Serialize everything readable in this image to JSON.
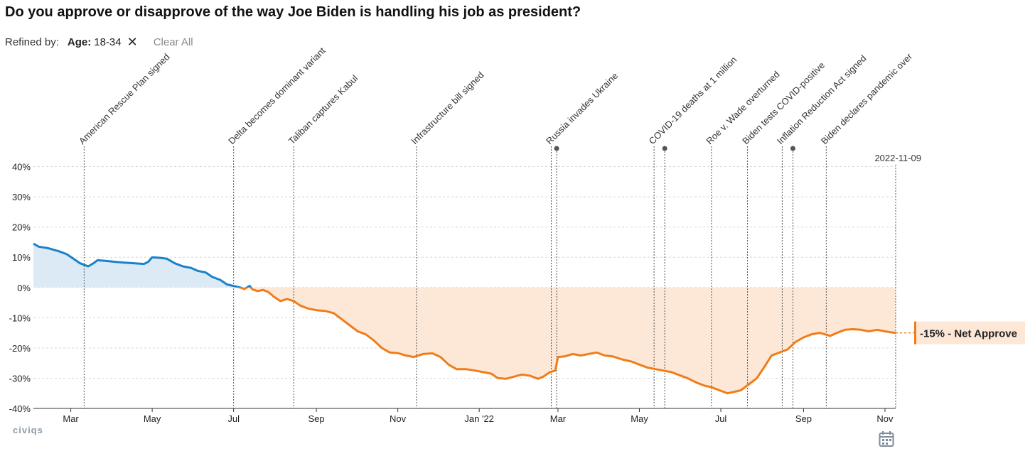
{
  "page": {
    "title": "Do you approve or disapprove of the way Joe Biden is handling his job as president?",
    "refined_by_label": "Refined by:",
    "filter_key": "Age:",
    "filter_value": "18-34",
    "clear_all": "Clear All",
    "logo": "civiqs"
  },
  "chart_data": {
    "type": "area",
    "ylim": [
      -40,
      40
    ],
    "yticks": [
      40,
      30,
      20,
      10,
      0,
      -10,
      -20,
      -30,
      -40
    ],
    "ytick_labels": [
      "40%",
      "30%",
      "20%",
      "10%",
      "0%",
      "-10%",
      "-20%",
      "-30%",
      "-40%"
    ],
    "x_range": [
      "2021-02-01",
      "2022-11-09"
    ],
    "x_ticks": [
      {
        "date": "2021-03-01",
        "label": "Mar"
      },
      {
        "date": "2021-05-01",
        "label": "May"
      },
      {
        "date": "2021-07-01",
        "label": "Jul"
      },
      {
        "date": "2021-09-01",
        "label": "Sep"
      },
      {
        "date": "2021-11-01",
        "label": "Nov"
      },
      {
        "date": "2022-01-01",
        "label": "Jan '22"
      },
      {
        "date": "2022-03-01",
        "label": "Mar"
      },
      {
        "date": "2022-05-01",
        "label": "May"
      },
      {
        "date": "2022-07-01",
        "label": "Jul"
      },
      {
        "date": "2022-09-01",
        "label": "Sep"
      },
      {
        "date": "2022-11-01",
        "label": "Nov"
      }
    ],
    "series": [
      {
        "name": "Net Approve",
        "positive_color": "#1a82c8",
        "negative_color": "#f07d19",
        "positive_fill": "#dceaf6",
        "negative_fill": "#fde8d8",
        "points": [
          [
            "2021-02-01",
            14.5
          ],
          [
            "2021-02-05",
            13.5
          ],
          [
            "2021-02-12",
            13
          ],
          [
            "2021-02-20",
            12
          ],
          [
            "2021-02-26",
            11
          ],
          [
            "2021-03-03",
            9.5
          ],
          [
            "2021-03-08",
            8
          ],
          [
            "2021-03-14",
            7
          ],
          [
            "2021-03-18",
            8
          ],
          [
            "2021-03-21",
            9
          ],
          [
            "2021-03-27",
            8.8
          ],
          [
            "2021-04-03",
            8.5
          ],
          [
            "2021-04-10",
            8.2
          ],
          [
            "2021-04-18",
            8
          ],
          [
            "2021-04-25",
            7.8
          ],
          [
            "2021-04-28",
            8.5
          ],
          [
            "2021-05-01",
            10
          ],
          [
            "2021-05-07",
            9.8
          ],
          [
            "2021-05-12",
            9.5
          ],
          [
            "2021-05-18",
            8
          ],
          [
            "2021-05-24",
            7
          ],
          [
            "2021-05-30",
            6.5
          ],
          [
            "2021-06-04",
            5.5
          ],
          [
            "2021-06-10",
            5
          ],
          [
            "2021-06-15",
            3.5
          ],
          [
            "2021-06-21",
            2.5
          ],
          [
            "2021-06-26",
            1
          ],
          [
            "2021-07-01",
            0.5
          ],
          [
            "2021-07-06",
            0
          ],
          [
            "2021-07-09",
            -0.5
          ],
          [
            "2021-07-13",
            0.5
          ],
          [
            "2021-07-15",
            -0.6
          ],
          [
            "2021-07-19",
            -1.2
          ],
          [
            "2021-07-23",
            -0.8
          ],
          [
            "2021-07-27",
            -1.5
          ],
          [
            "2021-07-31",
            -3
          ],
          [
            "2021-08-05",
            -4.5
          ],
          [
            "2021-08-10",
            -3.8
          ],
          [
            "2021-08-15",
            -4.5
          ],
          [
            "2021-08-20",
            -6
          ],
          [
            "2021-08-26",
            -7
          ],
          [
            "2021-09-01",
            -7.5
          ],
          [
            "2021-09-08",
            -7.8
          ],
          [
            "2021-09-14",
            -8.5
          ],
          [
            "2021-09-20",
            -10.5
          ],
          [
            "2021-09-26",
            -12.5
          ],
          [
            "2021-10-02",
            -14.5
          ],
          [
            "2021-10-08",
            -15.5
          ],
          [
            "2021-10-14",
            -17.5
          ],
          [
            "2021-10-20",
            -20
          ],
          [
            "2021-10-26",
            -21.5
          ],
          [
            "2021-11-01",
            -21.7
          ],
          [
            "2021-11-07",
            -22.5
          ],
          [
            "2021-11-13",
            -23
          ],
          [
            "2021-11-20",
            -22
          ],
          [
            "2021-11-27",
            -21.8
          ],
          [
            "2021-12-03",
            -23
          ],
          [
            "2021-12-09",
            -25.5
          ],
          [
            "2021-12-15",
            -27
          ],
          [
            "2021-12-22",
            -27
          ],
          [
            "2021-12-29",
            -27.5
          ],
          [
            "2022-01-04",
            -28
          ],
          [
            "2022-01-10",
            -28.5
          ],
          [
            "2022-01-15",
            -30
          ],
          [
            "2022-01-21",
            -30.2
          ],
          [
            "2022-01-27",
            -29.5
          ],
          [
            "2022-02-02",
            -28.8
          ],
          [
            "2022-02-08",
            -29.2
          ],
          [
            "2022-02-14",
            -30.2
          ],
          [
            "2022-02-18",
            -29.5
          ],
          [
            "2022-02-23",
            -28
          ],
          [
            "2022-02-27",
            -27.5
          ],
          [
            "2022-03-01",
            -23
          ],
          [
            "2022-03-06",
            -22.8
          ],
          [
            "2022-03-12",
            -22
          ],
          [
            "2022-03-18",
            -22.5
          ],
          [
            "2022-03-24",
            -22
          ],
          [
            "2022-03-30",
            -21.5
          ],
          [
            "2022-04-05",
            -22.5
          ],
          [
            "2022-04-11",
            -22.8
          ],
          [
            "2022-04-18",
            -23.8
          ],
          [
            "2022-04-25",
            -24.5
          ],
          [
            "2022-05-01",
            -25.5
          ],
          [
            "2022-05-07",
            -26.5
          ],
          [
            "2022-05-13",
            -27
          ],
          [
            "2022-05-19",
            -27.5
          ],
          [
            "2022-05-25",
            -28
          ],
          [
            "2022-05-31",
            -29
          ],
          [
            "2022-06-06",
            -30
          ],
          [
            "2022-06-13",
            -31.5
          ],
          [
            "2022-06-19",
            -32.5
          ],
          [
            "2022-06-24",
            -33
          ],
          [
            "2022-06-30",
            -34
          ],
          [
            "2022-07-06",
            -35
          ],
          [
            "2022-07-11",
            -34.5
          ],
          [
            "2022-07-16",
            -34
          ],
          [
            "2022-07-22",
            -32
          ],
          [
            "2022-07-28",
            -30
          ],
          [
            "2022-08-03",
            -26
          ],
          [
            "2022-08-08",
            -22.5
          ],
          [
            "2022-08-14",
            -21.5
          ],
          [
            "2022-08-20",
            -20.5
          ],
          [
            "2022-08-26",
            -18
          ],
          [
            "2022-09-01",
            -16.5
          ],
          [
            "2022-09-07",
            -15.5
          ],
          [
            "2022-09-13",
            -15
          ],
          [
            "2022-09-17",
            -15.5
          ],
          [
            "2022-09-21",
            -16
          ],
          [
            "2022-09-26",
            -15
          ],
          [
            "2022-10-02",
            -14
          ],
          [
            "2022-10-08",
            -13.8
          ],
          [
            "2022-10-14",
            -14
          ],
          [
            "2022-10-20",
            -14.5
          ],
          [
            "2022-10-26",
            -14
          ],
          [
            "2022-11-01",
            -14.5
          ],
          [
            "2022-11-05",
            -14.8
          ],
          [
            "2022-11-09",
            -15
          ]
        ]
      }
    ],
    "events": [
      {
        "date": "2021-03-11",
        "label": "American Rescue Plan signed",
        "dot": false
      },
      {
        "date": "2021-07-01",
        "label": "Delta becomes dominant variant",
        "dot": false
      },
      {
        "date": "2021-08-15",
        "label": "Taliban captures Kabul",
        "dot": false
      },
      {
        "date": "2021-11-15",
        "label": "Infrastructure bill signed",
        "dot": false
      },
      {
        "date": "2022-02-24",
        "label": "Russia invades Ukraine",
        "dot": false
      },
      {
        "date": "2022-02-28",
        "label": "",
        "dot": true
      },
      {
        "date": "2022-05-12",
        "label": "COVID-19 deaths at 1 million",
        "dot": false
      },
      {
        "date": "2022-05-20",
        "label": "",
        "dot": true
      },
      {
        "date": "2022-06-24",
        "label": "Roe v. Wade overturned",
        "dot": false
      },
      {
        "date": "2022-07-21",
        "label": "Biden tests COVID-positive",
        "dot": false
      },
      {
        "date": "2022-08-16",
        "label": "Inflation Reduction Act signed",
        "dot": false
      },
      {
        "date": "2022-08-24",
        "label": "",
        "dot": true
      },
      {
        "date": "2022-09-18",
        "label": "Biden declares pandemic over",
        "dot": false
      },
      {
        "date": "2022-11-09",
        "label": "2022-11-09",
        "dot": false,
        "end_marker": true
      }
    ],
    "current_value_label": "-15% - Net Approve"
  }
}
